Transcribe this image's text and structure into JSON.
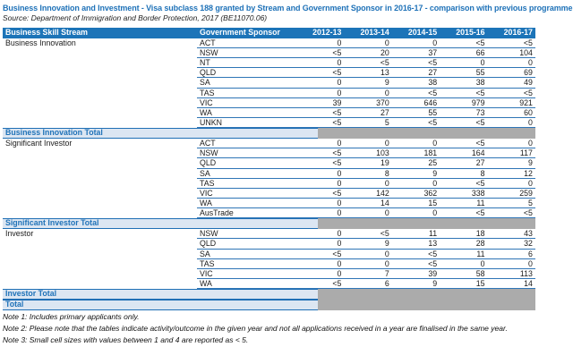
{
  "title": "Business Innovation and Investment - Visa subclass 188 granted by Stream and Government Sponsor in 2016-17 - comparison with previous programme year",
  "source": "Source: Department of Immigration and Border Protection, 2017 (BE11070.06)",
  "colors": {
    "header_bg": "#1C74B8",
    "row_line": "#2E75B6",
    "total_label_bg": "#DCE6F2",
    "total_text": "#1F72B8",
    "total_border": "#1F6FB5",
    "gray_cell": "#ABABAB",
    "title_text": "#1F72B8"
  },
  "table": {
    "headers": [
      "Business Skill Stream",
      "Government Sponsor",
      "2012-13",
      "2013-14",
      "2014-15",
      "2015-16",
      "2016-17"
    ],
    "groups": [
      {
        "stream": "Business Innovation",
        "total_label": "Business Innovation Total",
        "rows": [
          {
            "sponsor": "ACT",
            "values": [
              "0",
              "0",
              "0",
              "<5",
              "<5"
            ]
          },
          {
            "sponsor": "NSW",
            "values": [
              "<5",
              "20",
              "37",
              "66",
              "104"
            ]
          },
          {
            "sponsor": "NT",
            "values": [
              "0",
              "<5",
              "<5",
              "0",
              "0"
            ]
          },
          {
            "sponsor": "QLD",
            "values": [
              "<5",
              "13",
              "27",
              "55",
              "69"
            ]
          },
          {
            "sponsor": "SA",
            "values": [
              "0",
              "9",
              "38",
              "38",
              "49"
            ]
          },
          {
            "sponsor": "TAS",
            "values": [
              "0",
              "0",
              "<5",
              "<5",
              "<5"
            ]
          },
          {
            "sponsor": "VIC",
            "values": [
              "39",
              "370",
              "646",
              "979",
              "921"
            ]
          },
          {
            "sponsor": "WA",
            "values": [
              "<5",
              "27",
              "55",
              "73",
              "60"
            ]
          },
          {
            "sponsor": "UNKN",
            "values": [
              "<5",
              "5",
              "<5",
              "<5",
              "0"
            ]
          }
        ]
      },
      {
        "stream": "Significant Investor",
        "total_label": "Significant Investor Total",
        "rows": [
          {
            "sponsor": "ACT",
            "values": [
              "0",
              "0",
              "0",
              "<5",
              "0"
            ]
          },
          {
            "sponsor": "NSW",
            "values": [
              "<5",
              "103",
              "181",
              "164",
              "117"
            ]
          },
          {
            "sponsor": "QLD",
            "values": [
              "<5",
              "19",
              "25",
              "27",
              "9"
            ]
          },
          {
            "sponsor": "SA",
            "values": [
              "0",
              "8",
              "9",
              "8",
              "12"
            ]
          },
          {
            "sponsor": "TAS",
            "values": [
              "0",
              "0",
              "0",
              "<5",
              "0"
            ]
          },
          {
            "sponsor": "VIC",
            "values": [
              "<5",
              "142",
              "362",
              "338",
              "259"
            ]
          },
          {
            "sponsor": "WA",
            "values": [
              "0",
              "14",
              "15",
              "11",
              "5"
            ]
          },
          {
            "sponsor": "AusTrade",
            "values": [
              "0",
              "0",
              "0",
              "<5",
              "<5"
            ]
          }
        ]
      },
      {
        "stream": "Investor",
        "total_label": "Investor Total",
        "rows": [
          {
            "sponsor": "NSW",
            "values": [
              "0",
              "<5",
              "11",
              "18",
              "43"
            ]
          },
          {
            "sponsor": "QLD",
            "values": [
              "0",
              "9",
              "13",
              "28",
              "32"
            ]
          },
          {
            "sponsor": "SA",
            "values": [
              "<5",
              "0",
              "<5",
              "11",
              "6"
            ]
          },
          {
            "sponsor": "TAS",
            "values": [
              "0",
              "0",
              "<5",
              "0",
              "0"
            ]
          },
          {
            "sponsor": "VIC",
            "values": [
              "0",
              "7",
              "39",
              "58",
              "113"
            ]
          },
          {
            "sponsor": "WA",
            "values": [
              "<5",
              "6",
              "9",
              "15",
              "14"
            ]
          }
        ]
      }
    ],
    "grand_total_label": "Total"
  },
  "notes": [
    "Note 1: Includes primary applicants only.",
    "Note 2: Please note that the tables indicate activity/outcome in the given year and not all applications received in a year are finalised in the same year.",
    "Note 3: Small cell sizes with values between 1 and 4 are reported as < 5."
  ]
}
